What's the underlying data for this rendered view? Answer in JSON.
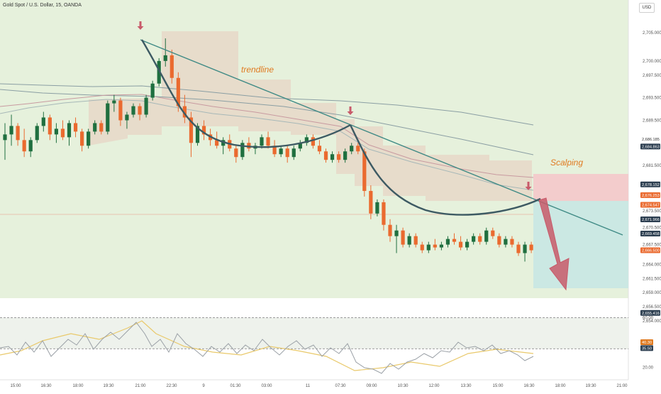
{
  "header": {
    "symbol_title": "Gold Spot / U.S. Dollar, 15, OANDA",
    "currency_button": "USD"
  },
  "annotations": {
    "trendline_label": "trendline",
    "scalping_label": "Scalping"
  },
  "colors": {
    "background": "#ffffff",
    "green_band": "#e6f1dc",
    "bull_candle": "#1f6f3f",
    "bear_candle": "#ea6a2f",
    "cloud": "#e6d8c8",
    "trendline": "#3f8a85",
    "cup_curve": "#3d5a63",
    "arrow": "#c85a6a",
    "stop_zone": "#f3cccc",
    "target_zone": "#cbe8e3",
    "annotation_text": "#e07a20",
    "rsi_line": "#9aa0a6",
    "rsi_ma": "#e9c96b"
  },
  "chart_data": {
    "type": "candlestick",
    "price_axis": {
      "ticks": [
        "2,705.000",
        "2,700.000",
        "2,697.500",
        "2,693.500",
        "2,689.500",
        "2,681.500",
        "2,673.500",
        "2,670.500",
        "2,667.500",
        "2,664.000",
        "2,661.500",
        "2,659.000",
        "2,656.500",
        "2,654.000"
      ],
      "price_tags": [
        {
          "text": "2,686.185",
          "bg": "#ffffff",
          "fg": "#333333",
          "value": 2686.19
        },
        {
          "text": "2,684.863",
          "bg": "#2c3e50",
          "fg": "#ffffff",
          "value": 2684.86
        },
        {
          "text": "2,678.152",
          "bg": "#2c3e50",
          "fg": "#ffffff",
          "value": 2678.15
        },
        {
          "text": "2,676.253",
          "bg": "#ea6a2f",
          "fg": "#ffffff",
          "value": 2676.25
        },
        {
          "text": "2,674.547",
          "bg": "#ea6a2f",
          "fg": "#ffffff",
          "value": 2674.55
        },
        {
          "text": "2,671.966",
          "bg": "#2c3e50",
          "fg": "#ffffff",
          "value": 2671.97
        },
        {
          "text": "2,669.458",
          "bg": "#2c3e50",
          "fg": "#ffffff",
          "value": 2669.46
        },
        {
          "text": "2,666.500",
          "bg": "#ea6a2f",
          "fg": "#ffffff",
          "value": 2666.5
        },
        {
          "text": "2,655.416",
          "bg": "#2c3e50",
          "fg": "#ffffff",
          "value": 2655.42
        }
      ]
    },
    "time_axis": [
      "15:00",
      "16:30",
      "18:00",
      "19:30",
      "21:00",
      "22:30",
      "9",
      "01:30",
      "03:00",
      "11",
      "07:30",
      "09:00",
      "10:30",
      "12:00",
      "13:30",
      "15:00",
      "16:30",
      "18:00",
      "19:30",
      "21:00"
    ],
    "candles": [
      [
        2686.0,
        2689.0,
        2682.5,
        2687.0
      ],
      [
        2687.0,
        2690.5,
        2685.0,
        2688.5
      ],
      [
        2688.5,
        2689.0,
        2685.0,
        2686.0
      ],
      [
        2686.0,
        2688.0,
        2683.0,
        2684.0
      ],
      [
        2684.0,
        2686.5,
        2683.0,
        2686.0
      ],
      [
        2686.0,
        2689.0,
        2685.5,
        2688.5
      ],
      [
        2688.5,
        2691.0,
        2687.5,
        2690.0
      ],
      [
        2690.0,
        2690.5,
        2686.0,
        2687.0
      ],
      [
        2687.0,
        2689.0,
        2685.5,
        2688.0
      ],
      [
        2688.0,
        2689.5,
        2686.0,
        2686.5
      ],
      [
        2686.5,
        2689.5,
        2685.0,
        2689.0
      ],
      [
        2689.0,
        2690.0,
        2686.5,
        2687.5
      ],
      [
        2687.5,
        2688.0,
        2684.0,
        2685.0
      ],
      [
        2685.0,
        2688.0,
        2684.5,
        2687.5
      ],
      [
        2687.5,
        2689.5,
        2687.0,
        2689.0
      ],
      [
        2689.0,
        2689.5,
        2687.0,
        2687.5
      ],
      [
        2687.5,
        2693.0,
        2687.0,
        2692.5
      ],
      [
        2692.5,
        2694.0,
        2691.0,
        2693.0
      ],
      [
        2693.0,
        2693.5,
        2688.5,
        2689.5
      ],
      [
        2689.5,
        2691.0,
        2688.0,
        2690.5
      ],
      [
        2690.5,
        2692.5,
        2690.0,
        2692.0
      ],
      [
        2692.0,
        2692.5,
        2689.5,
        2690.5
      ],
      [
        2690.5,
        2694.0,
        2690.0,
        2693.5
      ],
      [
        2693.5,
        2696.5,
        2693.0,
        2696.0
      ],
      [
        2696.0,
        2700.5,
        2695.5,
        2700.0
      ],
      [
        2700.0,
        2704.0,
        2699.0,
        2701.0
      ],
      [
        2701.0,
        2702.0,
        2696.0,
        2697.0
      ],
      [
        2697.0,
        2698.0,
        2691.0,
        2692.0
      ],
      [
        2692.0,
        2694.0,
        2689.0,
        2690.0
      ],
      [
        2690.0,
        2691.0,
        2683.0,
        2685.5
      ],
      [
        2685.5,
        2689.0,
        2685.0,
        2688.5
      ],
      [
        2688.5,
        2689.5,
        2686.0,
        2687.0
      ],
      [
        2687.0,
        2688.0,
        2685.0,
        2686.0
      ],
      [
        2686.0,
        2687.5,
        2684.5,
        2685.0
      ],
      [
        2685.0,
        2686.5,
        2683.5,
        2686.0
      ],
      [
        2686.0,
        2687.0,
        2684.0,
        2684.5
      ],
      [
        2684.5,
        2685.0,
        2682.0,
        2683.0
      ],
      [
        2683.0,
        2686.0,
        2682.5,
        2685.5
      ],
      [
        2685.5,
        2686.5,
        2684.0,
        2684.5
      ],
      [
        2684.5,
        2685.5,
        2683.5,
        2685.0
      ],
      [
        2685.0,
        2687.0,
        2684.5,
        2686.5
      ],
      [
        2686.5,
        2687.5,
        2684.5,
        2685.0
      ],
      [
        2685.0,
        2686.0,
        2683.0,
        2683.5
      ],
      [
        2683.5,
        2685.0,
        2683.0,
        2684.5
      ],
      [
        2684.5,
        2685.0,
        2682.0,
        2683.0
      ],
      [
        2683.0,
        2685.0,
        2682.5,
        2684.5
      ],
      [
        2684.5,
        2686.0,
        2684.0,
        2685.5
      ],
      [
        2685.5,
        2687.0,
        2685.0,
        2686.5
      ],
      [
        2686.5,
        2687.0,
        2684.5,
        2685.0
      ],
      [
        2685.0,
        2686.0,
        2683.5,
        2684.0
      ],
      [
        2684.0,
        2684.5,
        2682.0,
        2682.5
      ],
      [
        2682.5,
        2684.0,
        2682.0,
        2683.5
      ],
      [
        2683.5,
        2684.0,
        2682.0,
        2682.5
      ],
      [
        2682.5,
        2684.5,
        2682.0,
        2684.0
      ],
      [
        2684.0,
        2685.5,
        2683.5,
        2685.0
      ],
      [
        2685.0,
        2685.5,
        2683.5,
        2684.0
      ],
      [
        2684.0,
        2684.5,
        2676.0,
        2677.0
      ],
      [
        2677.0,
        2678.0,
        2672.0,
        2673.0
      ],
      [
        2673.0,
        2675.5,
        2672.5,
        2675.0
      ],
      [
        2675.0,
        2675.5,
        2670.0,
        2671.0
      ],
      [
        2671.0,
        2672.0,
        2668.0,
        2669.0
      ],
      [
        2669.0,
        2671.0,
        2666.0,
        2670.0
      ],
      [
        2670.0,
        2670.5,
        2667.0,
        2667.5
      ],
      [
        2667.5,
        2669.5,
        2667.0,
        2669.0
      ],
      [
        2669.0,
        2669.5,
        2667.0,
        2667.5
      ],
      [
        2667.5,
        2668.0,
        2666.0,
        2666.5
      ],
      [
        2666.5,
        2668.0,
        2666.0,
        2667.5
      ],
      [
        2667.5,
        2668.5,
        2666.5,
        2667.0
      ],
      [
        2667.0,
        2668.0,
        2666.5,
        2667.5
      ],
      [
        2667.5,
        2669.0,
        2667.0,
        2668.5
      ],
      [
        2668.5,
        2669.5,
        2667.5,
        2668.0
      ],
      [
        2668.0,
        2669.0,
        2666.5,
        2667.0
      ],
      [
        2667.0,
        2668.5,
        2666.5,
        2668.0
      ],
      [
        2668.0,
        2669.5,
        2667.5,
        2669.0
      ],
      [
        2669.0,
        2669.5,
        2667.5,
        2668.0
      ],
      [
        2668.0,
        2670.5,
        2667.5,
        2670.0
      ],
      [
        2670.0,
        2670.5,
        2668.5,
        2669.0
      ],
      [
        2669.0,
        2669.5,
        2667.0,
        2667.5
      ],
      [
        2667.5,
        2669.0,
        2667.0,
        2668.5
      ],
      [
        2668.5,
        2669.0,
        2667.0,
        2667.5
      ],
      [
        2667.5,
        2668.0,
        2665.5,
        2666.0
      ],
      [
        2666.0,
        2668.0,
        2664.5,
        2667.5
      ],
      [
        2667.5,
        2668.0,
        2666.0,
        2666.5
      ]
    ],
    "rsi": {
      "ticks": [
        "60.00",
        "35.50",
        "20.00"
      ],
      "current_values": [
        "40.30",
        "35.50"
      ],
      "upper_band": 60,
      "lower_band": 35
    }
  }
}
